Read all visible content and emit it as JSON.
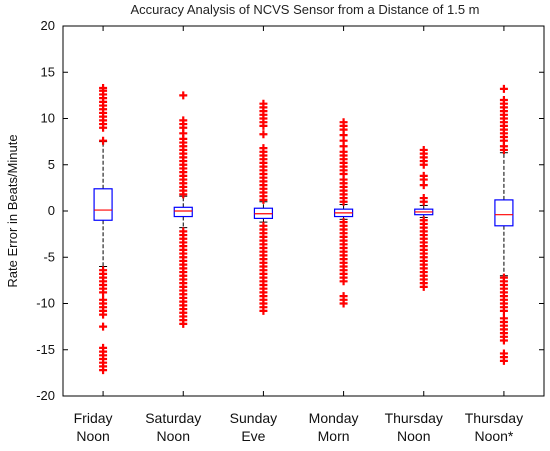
{
  "chart_data": {
    "type": "box",
    "title": "Accuracy Analysis of NCVS Sensor from a Distance of 1.5 m",
    "xlabel": "",
    "ylabel": "Rate Error in Beats/Minute",
    "ylim": [
      -20,
      20
    ],
    "yticks": [
      20,
      15,
      10,
      5,
      0,
      -5,
      -10,
      -15,
      -20
    ],
    "grid": false,
    "categories": [
      [
        "Friday",
        "Noon"
      ],
      [
        "Saturday",
        "Noon"
      ],
      [
        "Sunday",
        "Eve"
      ],
      [
        "Monday",
        "Morn"
      ],
      [
        "Thursday",
        "Noon"
      ],
      [
        "Thursday",
        "Noon*"
      ]
    ],
    "boxes": [
      {
        "whisker_low": -6.0,
        "q1": -1.0,
        "median": 0.1,
        "q3": 2.4,
        "whisker_high": 7.5,
        "outliers": [
          -17.2,
          -16.8,
          -16.4,
          -16.0,
          -15.6,
          -15.2,
          -14.8,
          -12.5,
          -11.2,
          -10.8,
          -10.4,
          -10.0,
          -9.6,
          -8.8,
          -8.4,
          -8.0,
          -7.6,
          -7.2,
          -6.8,
          -6.4,
          7.6,
          9.0,
          9.4,
          9.8,
          10.2,
          10.6,
          11.0,
          11.4,
          11.8,
          12.2,
          12.6,
          13.0,
          13.3
        ]
      },
      {
        "whisker_low": -1.8,
        "q1": -0.6,
        "median": 0.0,
        "q3": 0.4,
        "whisker_high": 1.6,
        "outliers": [
          -12.2,
          -11.8,
          -11.4,
          -11.0,
          -10.6,
          -10.2,
          -9.8,
          -9.4,
          -9.0,
          -8.6,
          -8.2,
          -7.8,
          -7.4,
          -7.0,
          -6.6,
          -6.2,
          -5.8,
          -5.4,
          -5.0,
          -4.6,
          -4.2,
          -3.8,
          -3.4,
          -3.0,
          -2.6,
          -2.2,
          1.8,
          2.2,
          2.6,
          3.0,
          3.4,
          3.8,
          4.2,
          4.6,
          5.0,
          5.4,
          5.8,
          6.2,
          6.6,
          7.0,
          7.4,
          7.8,
          8.4,
          9.0,
          9.4,
          9.8,
          12.5
        ]
      },
      {
        "whisker_low": -1.2,
        "q1": -0.8,
        "median": -0.3,
        "q3": 0.3,
        "whisker_high": 1.0,
        "outliers": [
          -10.8,
          -10.4,
          -10.0,
          -9.6,
          -9.2,
          -8.8,
          -8.4,
          -8.0,
          -7.6,
          -7.2,
          -6.8,
          -6.4,
          -6.0,
          -5.6,
          -5.2,
          -4.8,
          -4.4,
          -4.0,
          -3.6,
          -3.2,
          -2.8,
          -2.4,
          -2.0,
          -1.6,
          1.2,
          1.6,
          2.0,
          2.4,
          2.8,
          3.2,
          3.6,
          4.0,
          4.4,
          4.8,
          5.2,
          5.6,
          6.0,
          6.4,
          6.8,
          8.3,
          9.2,
          9.6,
          10.0,
          10.4,
          10.8,
          11.2,
          11.6
        ]
      },
      {
        "whisker_low": -0.9,
        "q1": -0.6,
        "median": -0.2,
        "q3": 0.2,
        "whisker_high": 0.7,
        "outliers": [
          -10.0,
          -9.6,
          -9.2,
          -7.6,
          -7.2,
          -6.8,
          -6.4,
          -6.0,
          -5.6,
          -5.2,
          -4.8,
          -4.4,
          -4.0,
          -3.6,
          -3.2,
          -2.8,
          -2.4,
          -2.0,
          -1.6,
          -1.2,
          1.0,
          1.4,
          1.8,
          2.2,
          2.6,
          3.0,
          3.4,
          4.0,
          4.4,
          4.8,
          5.2,
          5.6,
          6.0,
          6.4,
          7.0,
          7.6,
          8.2,
          8.8,
          9.2,
          9.6
        ]
      },
      {
        "whisker_low": -0.7,
        "q1": -0.4,
        "median": -0.1,
        "q3": 0.2,
        "whisker_high": 0.6,
        "outliers": [
          -8.2,
          -7.8,
          -7.4,
          -7.0,
          -6.6,
          -6.2,
          -5.8,
          -5.4,
          -5.0,
          -4.6,
          -4.2,
          -3.8,
          -3.4,
          -3.0,
          -2.6,
          -2.2,
          -1.8,
          -1.4,
          -1.0,
          1.0,
          1.4,
          2.8,
          3.4,
          3.8,
          5.0,
          5.4,
          5.8,
          6.2,
          6.6
        ]
      },
      {
        "whisker_low": -7.0,
        "q1": -1.6,
        "median": -0.4,
        "q3": 1.2,
        "whisker_high": 6.3,
        "outliers": [
          -16.2,
          -15.8,
          -15.4,
          -14.0,
          -13.6,
          -13.2,
          -12.8,
          -12.4,
          -12.0,
          -11.6,
          -10.8,
          -10.4,
          -10.0,
          -9.6,
          -9.2,
          -8.8,
          -8.4,
          -8.0,
          -7.6,
          -7.2,
          6.6,
          7.0,
          7.6,
          8.0,
          8.4,
          8.8,
          9.2,
          9.6,
          10.0,
          10.4,
          10.8,
          11.2,
          11.6,
          12.0,
          13.2
        ]
      }
    ],
    "colors": {
      "box": "#0000ff",
      "median": "#ff0000",
      "whisker": "#000000",
      "outlier": "#ff0000",
      "axis": "#000000"
    }
  }
}
